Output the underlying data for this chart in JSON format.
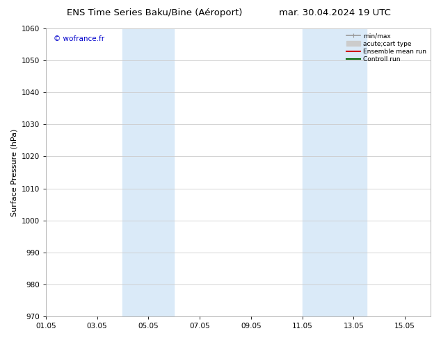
{
  "title_left": "ENS Time Series Baku/Bine (Aéroport)",
  "title_right": "mar. 30.04.2024 19 UTC",
  "ylabel": "Surface Pressure (hPa)",
  "ylim": [
    970,
    1060
  ],
  "yticks": [
    970,
    980,
    990,
    1000,
    1010,
    1020,
    1030,
    1040,
    1050,
    1060
  ],
  "xlim": [
    0,
    15
  ],
  "xtick_labels": [
    "01.05",
    "03.05",
    "05.05",
    "07.05",
    "09.05",
    "11.05",
    "13.05",
    "15.05"
  ],
  "xtick_positions": [
    0,
    2,
    4,
    6,
    8,
    10,
    12,
    14
  ],
  "shaded_regions": [
    {
      "x_start": 3.0,
      "x_end": 5.0,
      "color": "#daeaf8"
    },
    {
      "x_start": 10.0,
      "x_end": 12.5,
      "color": "#daeaf8"
    }
  ],
  "watermark": "© wofrance.fr",
  "watermark_color": "#0000cc",
  "legend_items": [
    {
      "label": "min/max",
      "color": "#999999",
      "lw": 1.2
    },
    {
      "label": "acute;cart type",
      "color": "#cccccc",
      "lw": 6
    },
    {
      "label": "Ensemble mean run",
      "color": "#cc0000",
      "lw": 1.5
    },
    {
      "label": "Controll run",
      "color": "#006600",
      "lw": 1.5
    }
  ],
  "bg_color": "#ffffff",
  "plot_bg_color": "#ffffff",
  "grid_color": "#cccccc",
  "title_fontsize": 9.5,
  "tick_fontsize": 7.5,
  "label_fontsize": 8,
  "legend_fontsize": 6.5,
  "watermark_fontsize": 7.5
}
